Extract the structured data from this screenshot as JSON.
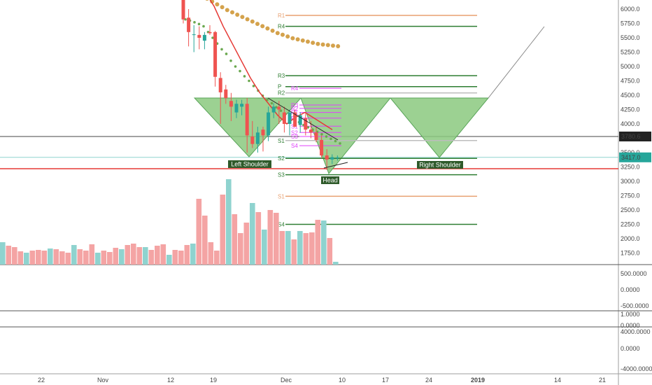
{
  "chart_data": {
    "type": "candlestick",
    "instrument_note": "",
    "x_axis": {
      "tick_labels": [
        "22",
        "Nov",
        "12",
        "19",
        "Dec",
        "10",
        "17",
        "24",
        "2019",
        "14",
        "21"
      ]
    },
    "y_axis_price": {
      "tick_labels": [
        "6000.0",
        "5750.0",
        "5500.0",
        "5250.0",
        "5000.0",
        "4750.0",
        "4500.0",
        "4250.0",
        "4000.0",
        "3750.0",
        "3500.0",
        "3250.0",
        "3000.0",
        "2750.0",
        "2500.0",
        "2250.0",
        "2000.0",
        "1750.0"
      ],
      "ylim": [
        1600,
        6150
      ]
    },
    "price_badges": [
      {
        "value": "3780.6",
        "color": "#222222"
      },
      {
        "value": "3417.0",
        "color": "#26a69a"
      }
    ],
    "candles": [
      {
        "o": 6380,
        "h": 6450,
        "l": 5750,
        "c": 5820
      },
      {
        "o": 5850,
        "h": 6000,
        "l": 5350,
        "c": 5600
      },
      {
        "o": 5560,
        "h": 5720,
        "l": 5250,
        "c": 5560
      },
      {
        "o": 5550,
        "h": 5700,
        "l": 5300,
        "c": 5500
      },
      {
        "o": 5450,
        "h": 5600,
        "l": 5300,
        "c": 5550
      },
      {
        "o": 5600,
        "h": 5720,
        "l": 5550,
        "c": 5580
      },
      {
        "o": 5600,
        "h": 5620,
        "l": 4650,
        "c": 4820
      },
      {
        "o": 4800,
        "h": 4900,
        "l": 4000,
        "c": 4550
      },
      {
        "o": 4600,
        "h": 4680,
        "l": 4350,
        "c": 4450
      },
      {
        "o": 4400,
        "h": 4540,
        "l": 4050,
        "c": 4300
      },
      {
        "o": 4200,
        "h": 4420,
        "l": 4100,
        "c": 4350
      },
      {
        "o": 4300,
        "h": 4420,
        "l": 4150,
        "c": 4350
      },
      {
        "o": 4350,
        "h": 4450,
        "l": 3500,
        "c": 3800
      },
      {
        "o": 3780,
        "h": 4050,
        "l": 3580,
        "c": 3650
      },
      {
        "o": 3650,
        "h": 3950,
        "l": 3500,
        "c": 3850
      },
      {
        "o": 3900,
        "h": 3950,
        "l": 3520,
        "c": 3800
      },
      {
        "o": 3800,
        "h": 4300,
        "l": 3700,
        "c": 4200
      },
      {
        "o": 4200,
        "h": 4360,
        "l": 4100,
        "c": 4300
      },
      {
        "o": 4300,
        "h": 4400,
        "l": 4000,
        "c": 4250
      },
      {
        "o": 4200,
        "h": 4300,
        "l": 3850,
        "c": 4000
      },
      {
        "o": 4000,
        "h": 4250,
        "l": 3800,
        "c": 4200
      },
      {
        "o": 4200,
        "h": 4250,
        "l": 3950,
        "c": 3950
      },
      {
        "o": 3980,
        "h": 4200,
        "l": 3850,
        "c": 4150
      },
      {
        "o": 4100,
        "h": 4180,
        "l": 3800,
        "c": 3900
      },
      {
        "o": 3900,
        "h": 4050,
        "l": 3750,
        "c": 3850
      },
      {
        "o": 3850,
        "h": 3950,
        "l": 3680,
        "c": 3720
      },
      {
        "o": 3720,
        "h": 3800,
        "l": 3400,
        "c": 3450
      },
      {
        "o": 3450,
        "h": 3560,
        "l": 3200,
        "c": 3380
      },
      {
        "o": 3380,
        "h": 3470,
        "l": 3300,
        "c": 3420
      },
      {
        "o": 3400,
        "h": 3450,
        "l": 3360,
        "c": 3417
      }
    ],
    "volume": [
      32,
      27,
      25,
      19,
      17,
      20,
      21,
      20,
      23,
      22,
      19,
      17,
      28,
      22,
      20,
      29,
      17,
      20,
      18,
      24,
      22,
      28,
      30,
      25,
      25,
      21,
      27,
      29,
      14,
      21,
      20,
      28,
      30,
      94,
      70,
      32,
      20,
      100,
      122,
      72,
      45,
      60,
      88,
      75,
      50,
      78,
      74,
      48,
      48,
      36,
      48,
      45,
      46,
      64,
      63,
      38,
      4
    ],
    "sma_line": [
      [
        6450,
        6350
      ],
      [
        6300,
        6150
      ],
      [
        6050,
        5850
      ],
      [
        5700,
        5550
      ],
      [
        5400,
        5250
      ],
      [
        5100,
        4950
      ],
      [
        4800,
        4650
      ],
      [
        4550,
        4450
      ],
      [
        4350,
        4250
      ],
      [
        4150,
        4050
      ],
      [
        4000,
        3990
      ],
      [
        4120,
        4250
      ],
      [
        4200,
        4150
      ],
      [
        4100,
        4050
      ],
      [
        4000,
        3950
      ],
      [
        3900,
        3880
      ]
    ],
    "psar_dots": [
      5820,
      5800,
      5770,
      5740,
      5700,
      5600,
      5500,
      5400,
      5300,
      5220,
      5100,
      5000,
      4920,
      4830,
      4750,
      4660,
      4580,
      4490,
      4420,
      4360,
      4290,
      4230,
      4170,
      4120,
      4070,
      4030,
      3980,
      3940,
      3900,
      3860,
      3820,
      3780,
      3740,
      3700,
      3660
    ],
    "ema_dots": [
      6000,
      5950,
      5900,
      5850,
      5800,
      5760,
      5720,
      5680,
      5640,
      5600,
      5560,
      5520,
      5480,
      5440,
      5400,
      5370,
      5340,
      5310,
      5290,
      5270,
      5250,
      5230,
      5210,
      5200,
      5190,
      5180,
      5170
    ],
    "pivot_levels_right": [
      {
        "label": "R1",
        "value": 5890,
        "color": "#e8a070"
      },
      {
        "label": "R4",
        "value": 5700,
        "color": "#2e7d32"
      },
      {
        "label": "R3",
        "value": 4840,
        "color": "#2e7d32"
      },
      {
        "label": "P",
        "value": 4650,
        "color": "#2e7d32"
      },
      {
        "label": "R2",
        "value": 4540,
        "color": "#bdbdbd"
      },
      {
        "label": "S1",
        "value": 3710,
        "color": "#bdbdbd"
      },
      {
        "label": "S2",
        "value": 3400,
        "color": "#2e7d32"
      },
      {
        "label": "S3",
        "value": 3115,
        "color": "#2e7d32"
      },
      {
        "label": "S1",
        "value": 2740,
        "color": "#e8a070"
      },
      {
        "label": "S4",
        "value": 2250,
        "color": "#2e7d32"
      }
    ],
    "pivot_levels_short": [
      {
        "label": "R4",
        "value": 4620
      },
      {
        "label": "R3",
        "value": 4330
      },
      {
        "label": "R2",
        "value": 4270
      },
      {
        "label": "R1",
        "value": 4200
      },
      {
        "label": "P",
        "value": 4100
      },
      {
        "label": "S1",
        "value": 3960
      },
      {
        "label": "S2",
        "value": 3850
      },
      {
        "label": "S3",
        "value": 3780
      },
      {
        "label": "S4",
        "value": 3620
      }
    ],
    "horizontal_lines": [
      {
        "value": 3780.6,
        "color": "#444444"
      },
      {
        "value": 3417.0,
        "color": "#8fd3cf"
      },
      {
        "value": 3220,
        "color": "#e53935"
      }
    ],
    "annotations": [
      {
        "text": "Left Shoulder"
      },
      {
        "text": "Head"
      },
      {
        "text": "Right Shoulder"
      }
    ],
    "oscillator_1": {
      "tick_labels": [
        "500.0000",
        "0.0000",
        "-500.0000"
      ]
    },
    "oscillator_2": {
      "tick_labels": [
        "1.0000"
      ]
    },
    "oscillator_3": {
      "tick_labels": [
        "0.0000",
        "4000.0000",
        "0.0000",
        "-4000.0000"
      ]
    },
    "colors": {
      "up": "#26a69a",
      "down": "#ef5350",
      "up_volume": "#8fd3cf",
      "down_volume": "#f4a4a4",
      "sma": "#e53935",
      "psar": "#6aa84f",
      "ema_dots": "#d4a24c",
      "hs_fill": "#8bc97f",
      "hs_stroke": "#5aa55a",
      "pivot_short": "#e040fb",
      "annotation_bg": "#2e5a2a"
    }
  }
}
